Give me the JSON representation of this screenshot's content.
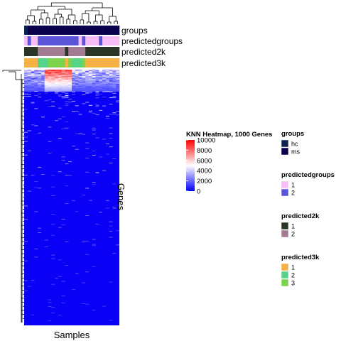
{
  "chart_data": {
    "type": "heatmap",
    "title": "KNN Heatmap, 1000 Genes",
    "xlabel": "Samples",
    "ylabel": "Genes",
    "n_samples": 28,
    "n_genes": 1000,
    "color_scale": {
      "min": 0,
      "max": 10000,
      "ticks": [
        0,
        2000,
        4000,
        6000,
        8000,
        10000
      ],
      "colors": [
        "#0000ff",
        "#ffffff",
        "#ff0000"
      ],
      "midpoint": 5000
    },
    "annotation_tracks": [
      {
        "name": "groups",
        "values": [
          "hc",
          "ms",
          "ms",
          "ms",
          "ms",
          "ms",
          "ms",
          "ms",
          "ms",
          "ms",
          "ms",
          "ms",
          "ms",
          "ms",
          "ms",
          "ms",
          "ms",
          "ms",
          "ms",
          "ms",
          "ms",
          "ms",
          "ms",
          "ms",
          "ms",
          "ms",
          "ms",
          "ms"
        ],
        "legend": [
          {
            "label": "hc",
            "color": "#0b2250"
          },
          {
            "label": "ms",
            "color": "#08004a"
          }
        ]
      },
      {
        "name": "predictedgroups",
        "values": [
          "1",
          "2",
          "1",
          "1",
          "2",
          "2",
          "2",
          "2",
          "2",
          "2",
          "2",
          "2",
          "2",
          "2",
          "2",
          "2",
          "1",
          "2",
          "1",
          "1",
          "1",
          "1",
          "2",
          "1",
          "1",
          "1",
          "1",
          "1"
        ],
        "legend": [
          {
            "label": "1",
            "color": "#f6bdf6"
          },
          {
            "label": "2",
            "color": "#5b54d9"
          }
        ]
      },
      {
        "name": "predicted2k",
        "values": [
          "1",
          "1",
          "1",
          "1",
          "2",
          "2",
          "2",
          "2",
          "2",
          "2",
          "2",
          "2",
          "1",
          "2",
          "2",
          "2",
          "2",
          "2",
          "1",
          "1",
          "1",
          "1",
          "1",
          "1",
          "1",
          "1",
          "1",
          "1"
        ],
        "legend": [
          {
            "label": "1",
            "color": "#2b3526"
          },
          {
            "label": "2",
            "color": "#a27a91"
          }
        ]
      },
      {
        "name": "predicted3k",
        "values": [
          "1",
          "1",
          "1",
          "1",
          "2",
          "2",
          "2",
          "3",
          "3",
          "3",
          "3",
          "3",
          "1",
          "3",
          "2",
          "2",
          "2",
          "3",
          "1",
          "1",
          "1",
          "1",
          "1",
          "1",
          "1",
          "1",
          "1",
          "1"
        ],
        "legend": [
          {
            "label": "1",
            "color": "#f5b143"
          },
          {
            "label": "2",
            "color": "#55d488"
          },
          {
            "label": "3",
            "color": "#7ad44d"
          }
        ]
      }
    ],
    "pattern": "Expression values are mostly low (blue) across genes; the top-ranked genes show high values (red), concentrated in samples 6 to 13."
  }
}
